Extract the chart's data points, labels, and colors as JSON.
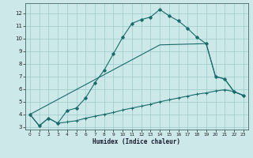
{
  "xlabel": "Humidex (Indice chaleur)",
  "bg_color": "#cce8e8",
  "grid_color": "#99cccc",
  "line_color": "#1a6b6b",
  "xlim": [
    -0.5,
    23.5
  ],
  "ylim": [
    2.8,
    12.8
  ],
  "xticks": [
    0,
    1,
    2,
    3,
    4,
    5,
    6,
    7,
    8,
    9,
    10,
    11,
    12,
    13,
    14,
    15,
    16,
    17,
    18,
    19,
    20,
    21,
    22,
    23
  ],
  "yticks": [
    3,
    4,
    5,
    6,
    7,
    8,
    9,
    10,
    11,
    12
  ],
  "line1_x": [
    0,
    1,
    2,
    3,
    4,
    5,
    6,
    7,
    8,
    9,
    10,
    11,
    12,
    13,
    14,
    15,
    16,
    17,
    18,
    19,
    20,
    21,
    22,
    23
  ],
  "line1_y": [
    4.0,
    3.1,
    3.7,
    3.3,
    3.4,
    3.5,
    3.7,
    3.85,
    4.0,
    4.15,
    4.35,
    4.5,
    4.65,
    4.8,
    5.0,
    5.15,
    5.3,
    5.45,
    5.6,
    5.7,
    5.85,
    5.95,
    5.8,
    5.5
  ],
  "line2_x": [
    0,
    1,
    2,
    3,
    4,
    5,
    6,
    7,
    8,
    9,
    10,
    11,
    12,
    13,
    14,
    15,
    16,
    17,
    18,
    19,
    20,
    21,
    22,
    23
  ],
  "line2_y": [
    4.0,
    3.1,
    3.7,
    3.3,
    4.3,
    4.5,
    5.3,
    6.5,
    7.5,
    8.8,
    10.1,
    11.2,
    11.5,
    11.7,
    12.3,
    11.8,
    11.4,
    10.8,
    10.1,
    9.6,
    7.0,
    6.8,
    5.8,
    5.5
  ],
  "line3_x": [
    0,
    14,
    19,
    20,
    21,
    22,
    23
  ],
  "line3_y": [
    4.0,
    9.5,
    9.6,
    7.0,
    6.8,
    5.8,
    5.5
  ]
}
